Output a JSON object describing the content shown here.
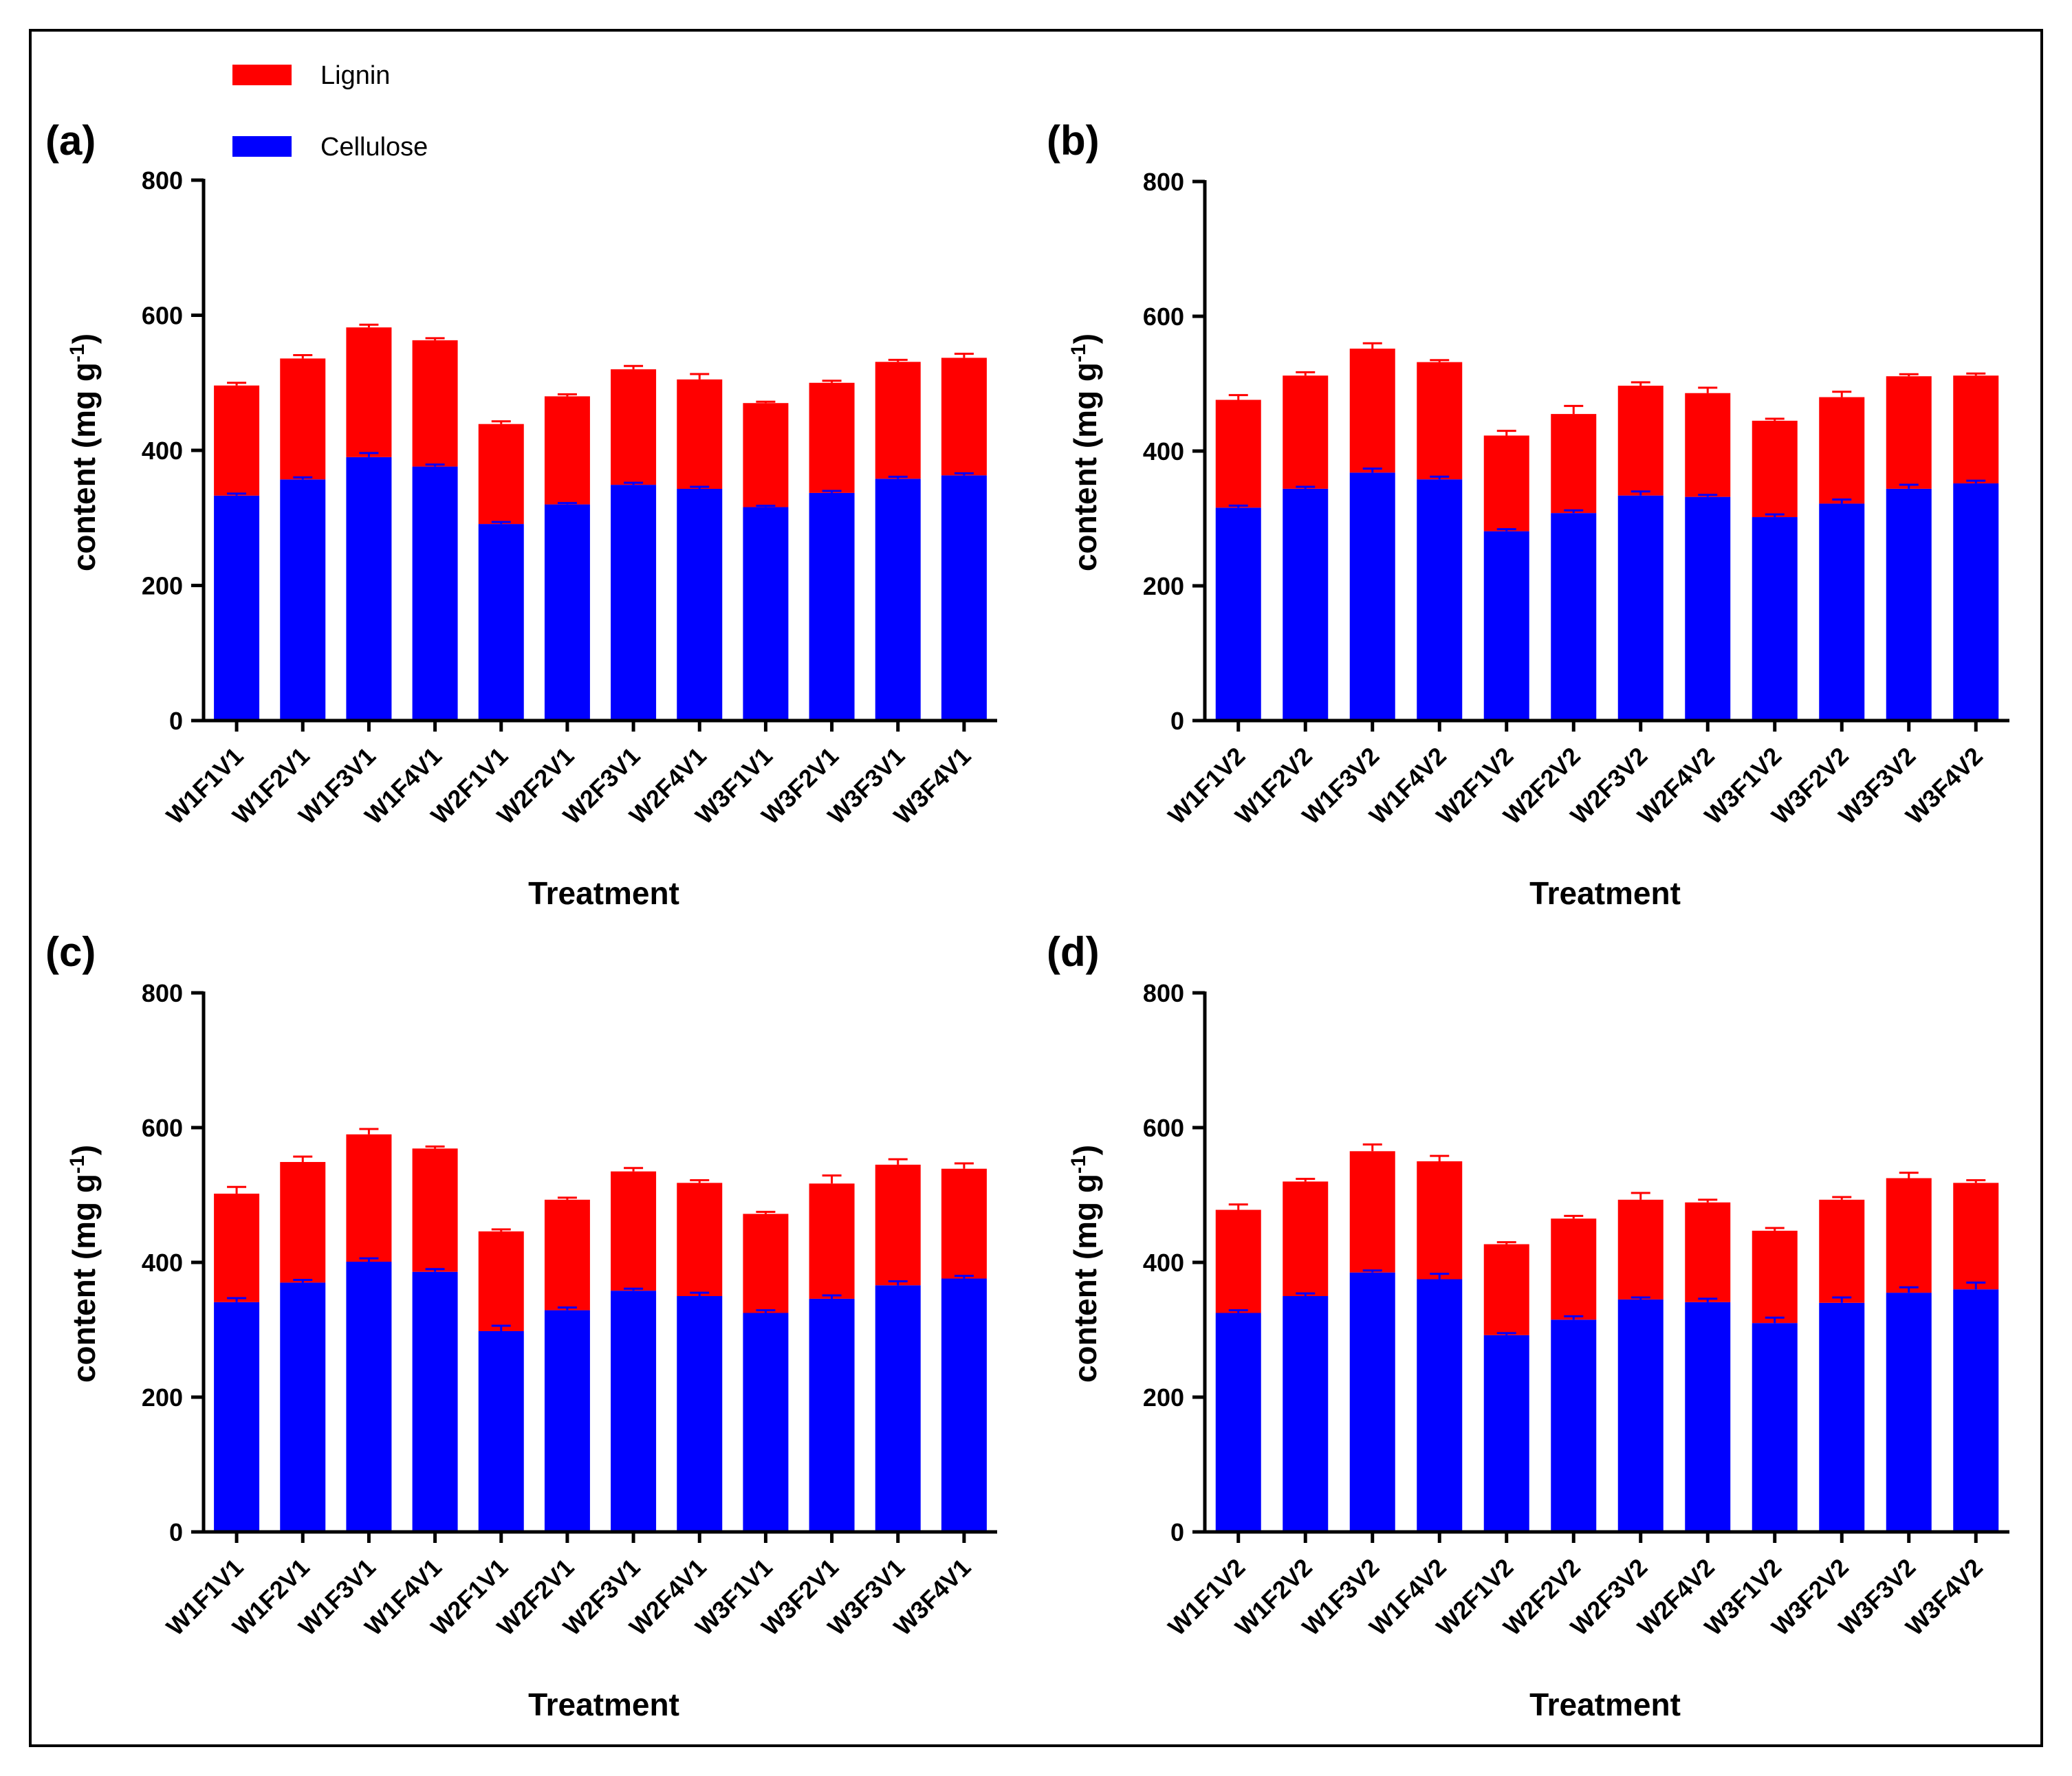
{
  "legend": [
    {
      "key": "lignin",
      "label": "Lignin",
      "color": "#ff0000"
    },
    {
      "key": "cellulose",
      "label": "Cellulose",
      "color": "#0000ff"
    }
  ],
  "colors": {
    "lignin": "#ff0000",
    "cellulose": "#0000ff",
    "error_bar": "#ff0000"
  },
  "chart_data": [
    {
      "panel": "(a)",
      "type": "bar",
      "stacked": true,
      "xlabel": "Treatment",
      "ylabel": "content (mg g",
      "ylabel_sup": "-1",
      "ylabel_close": ")",
      "ylim": [
        0,
        800
      ],
      "yticks": [
        "0",
        "200",
        "400",
        "600",
        "800"
      ],
      "categories": [
        "W1F1V1",
        "W1F2V1",
        "W1F3V1",
        "W1F4V1",
        "W2F1V1",
        "W2F2V1",
        "W2F3V1",
        "W2F4V1",
        "W3F1V1",
        "W3F2V1",
        "W3F3V1",
        "W3F4V1"
      ],
      "series": [
        {
          "name": "Cellulose",
          "values": [
            333,
            357,
            390,
            376,
            291,
            320,
            349,
            343,
            316,
            337,
            358,
            363
          ],
          "errors": [
            3,
            3,
            6,
            3,
            3,
            2,
            3,
            3,
            2,
            3,
            3,
            3
          ]
        },
        {
          "name": "Lignin",
          "values": [
            163,
            179,
            192,
            187,
            148,
            160,
            171,
            162,
            154,
            163,
            173,
            174
          ],
          "errors": [
            4,
            5,
            4,
            3,
            4,
            3,
            5,
            8,
            2,
            3,
            3,
            6
          ]
        }
      ]
    },
    {
      "panel": "(b)",
      "type": "bar",
      "stacked": true,
      "xlabel": "Treatment",
      "ylabel": "content (mg g",
      "ylabel_sup": "-1",
      "ylabel_close": ")",
      "ylim": [
        0,
        800
      ],
      "yticks": [
        "0",
        "200",
        "400",
        "600",
        "800"
      ],
      "categories": [
        "W1F1V2",
        "W1F2V2",
        "W1F3V2",
        "W1F4V2",
        "W2F1V2",
        "W2F2V2",
        "W2F3V2",
        "W2F4V2",
        "W3F1V2",
        "W3F2V2",
        "W3F3V2",
        "W3F4V2"
      ],
      "series": [
        {
          "name": "Cellulose",
          "values": [
            316,
            344,
            368,
            358,
            281,
            308,
            334,
            332,
            302,
            322,
            344,
            352
          ],
          "errors": [
            3,
            3,
            6,
            4,
            3,
            4,
            6,
            3,
            4,
            6,
            6,
            4
          ]
        },
        {
          "name": "Lignin",
          "values": [
            160,
            168,
            184,
            174,
            142,
            147,
            163,
            154,
            143,
            158,
            167,
            160
          ],
          "errors": [
            7,
            5,
            8,
            3,
            7,
            12,
            5,
            8,
            3,
            8,
            3,
            3
          ]
        }
      ]
    },
    {
      "panel": "(c)",
      "type": "bar",
      "stacked": true,
      "xlabel": "Treatment",
      "ylabel": "content (mg g",
      "ylabel_sup": "-1",
      "ylabel_close": ")",
      "ylim": [
        0,
        800
      ],
      "yticks": [
        "0",
        "200",
        "400",
        "600",
        "800"
      ],
      "categories": [
        "W1F1V1",
        "W1F2V1",
        "W1F3V1",
        "W1F4V1",
        "W2F1V1",
        "W2F2V1",
        "W2F3V1",
        "W2F4V1",
        "W3F1V1",
        "W3F2V1",
        "W3F3V1",
        "W3F4V1"
      ],
      "series": [
        {
          "name": "Cellulose",
          "values": [
            341,
            370,
            401,
            386,
            298,
            329,
            358,
            350,
            325,
            346,
            366,
            376
          ],
          "errors": [
            6,
            4,
            5,
            4,
            8,
            4,
            3,
            5,
            4,
            5,
            6,
            4
          ]
        },
        {
          "name": "Lignin",
          "values": [
            161,
            179,
            189,
            183,
            148,
            164,
            177,
            168,
            147,
            171,
            179,
            163
          ],
          "errors": [
            10,
            8,
            8,
            3,
            3,
            3,
            5,
            4,
            3,
            12,
            8,
            8
          ]
        }
      ]
    },
    {
      "panel": "(d)",
      "type": "bar",
      "stacked": true,
      "xlabel": "Treatment",
      "ylabel": "content (mg g",
      "ylabel_sup": "-1",
      "ylabel_close": ")",
      "ylim": [
        0,
        800
      ],
      "yticks": [
        "0",
        "200",
        "400",
        "600",
        "800"
      ],
      "categories": [
        "W1F1V2",
        "W1F2V2",
        "W1F3V2",
        "W1F4V2",
        "W2F1V2",
        "W2F2V2",
        "W2F3V2",
        "W2F4V2",
        "W3F1V2",
        "W3F2V2",
        "W3F3V2",
        "W3F4V2"
      ],
      "series": [
        {
          "name": "Cellulose",
          "values": [
            325,
            350,
            385,
            375,
            292,
            315,
            345,
            341,
            310,
            340,
            355,
            360
          ],
          "errors": [
            4,
            4,
            3,
            8,
            3,
            5,
            3,
            5,
            8,
            8,
            8,
            10
          ]
        },
        {
          "name": "Lignin",
          "values": [
            153,
            170,
            180,
            175,
            135,
            150,
            148,
            148,
            137,
            153,
            170,
            158
          ],
          "errors": [
            8,
            4,
            10,
            8,
            3,
            4,
            10,
            4,
            4,
            4,
            8,
            4
          ]
        }
      ]
    }
  ]
}
